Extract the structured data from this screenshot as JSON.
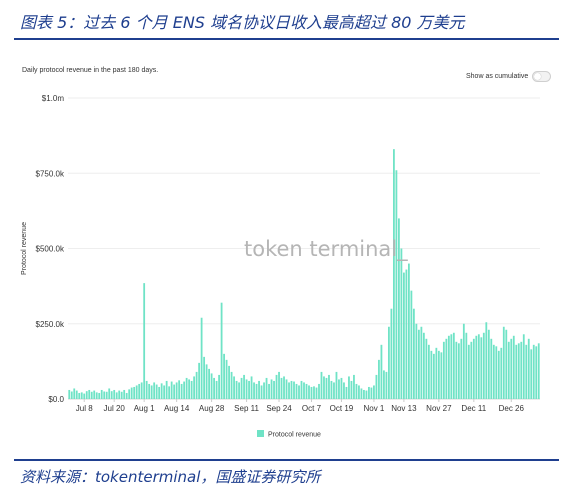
{
  "figure": {
    "title": "图表 5：过去 6 个月 ENS 域名协议日收入最高超过 80 万美元",
    "source": "资料来源：tokenterminal，国盛证券研究所"
  },
  "panel": {
    "subtitle": "Daily protocol revenue in the past 180 days.",
    "toggle_label": "Show as cumulative",
    "watermark": "token terminal_"
  },
  "colors": {
    "bar": "#6fe3c6",
    "axis": "#cccccc",
    "title": "#1f3f8f"
  },
  "chart_data": {
    "type": "bar",
    "ylabel": "Protocol revenue",
    "ylim": [
      0,
      1000000
    ],
    "yticks": [
      {
        "value": 0,
        "label": "$0.0"
      },
      {
        "value": 250000,
        "label": "$250.0k"
      },
      {
        "value": 500000,
        "label": "$500.0k"
      },
      {
        "value": 750000,
        "label": "$750.0k"
      },
      {
        "value": 1000000,
        "label": "$1.0m"
      }
    ],
    "xticks": [
      {
        "index": 6,
        "label": "Jul 8"
      },
      {
        "index": 18,
        "label": "Jul 20"
      },
      {
        "index": 30,
        "label": "Aug 1"
      },
      {
        "index": 43,
        "label": "Aug 14"
      },
      {
        "index": 57,
        "label": "Aug 28"
      },
      {
        "index": 71,
        "label": "Sep 11"
      },
      {
        "index": 84,
        "label": "Sep 24"
      },
      {
        "index": 97,
        "label": "Oct 7"
      },
      {
        "index": 109,
        "label": "Oct 19"
      },
      {
        "index": 122,
        "label": "Nov 1"
      },
      {
        "index": 134,
        "label": "Nov 13"
      },
      {
        "index": 148,
        "label": "Nov 27"
      },
      {
        "index": 162,
        "label": "Dec 11"
      },
      {
        "index": 177,
        "label": "Dec 26"
      }
    ],
    "legend": {
      "label": "Protocol revenue",
      "position": "bottom"
    },
    "series": [
      {
        "name": "Protocol revenue",
        "values": [
          30000,
          25000,
          35000,
          28000,
          20000,
          22000,
          18000,
          26000,
          30000,
          24000,
          28000,
          22000,
          20000,
          30000,
          25000,
          24000,
          35000,
          26000,
          30000,
          22000,
          28000,
          24000,
          30000,
          20000,
          32000,
          38000,
          40000,
          45000,
          50000,
          55000,
          385000,
          60000,
          50000,
          45000,
          55000,
          48000,
          40000,
          52000,
          45000,
          60000,
          42000,
          58000,
          48000,
          55000,
          62000,
          50000,
          58000,
          70000,
          65000,
          60000,
          75000,
          90000,
          120000,
          270000,
          140000,
          115000,
          100000,
          85000,
          70000,
          60000,
          80000,
          320000,
          150000,
          130000,
          110000,
          90000,
          75000,
          60000,
          55000,
          70000,
          80000,
          65000,
          60000,
          75000,
          55000,
          50000,
          60000,
          45000,
          55000,
          70000,
          50000,
          65000,
          60000,
          80000,
          90000,
          70000,
          75000,
          65000,
          55000,
          60000,
          58000,
          50000,
          45000,
          60000,
          55000,
          50000,
          45000,
          40000,
          42000,
          38000,
          50000,
          90000,
          75000,
          70000,
          80000,
          60000,
          55000,
          90000,
          65000,
          70000,
          55000,
          40000,
          75000,
          60000,
          80000,
          50000,
          45000,
          35000,
          30000,
          28000,
          40000,
          38000,
          45000,
          80000,
          130000,
          180000,
          95000,
          90000,
          240000,
          300000,
          830000,
          760000,
          600000,
          500000,
          420000,
          430000,
          450000,
          360000,
          300000,
          250000,
          230000,
          240000,
          220000,
          200000,
          180000,
          160000,
          150000,
          170000,
          160000,
          155000,
          190000,
          200000,
          210000,
          215000,
          220000,
          190000,
          185000,
          200000,
          250000,
          220000,
          180000,
          190000,
          200000,
          210000,
          215000,
          205000,
          220000,
          255000,
          230000,
          200000,
          180000,
          175000,
          160000,
          170000,
          240000,
          230000,
          190000,
          200000,
          210000,
          180000,
          185000,
          190000,
          215000,
          180000,
          200000,
          165000,
          180000,
          175000,
          185000
        ]
      }
    ]
  }
}
